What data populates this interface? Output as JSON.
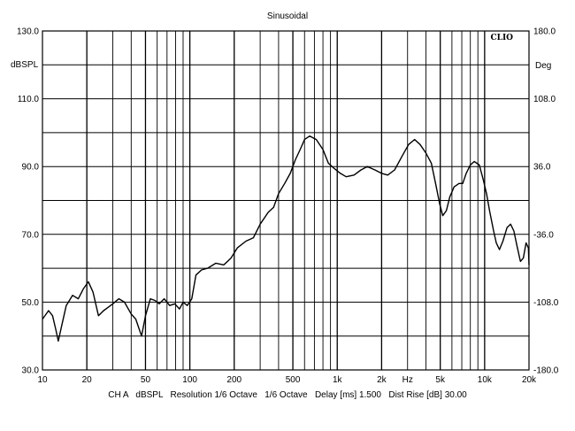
{
  "chart_data": {
    "type": "line",
    "title": "Sinusoidal",
    "brand": "CLIO",
    "left_unit": "dBSPL",
    "right_unit": "Deg",
    "x_scale": "log",
    "xlim": [
      10,
      20000
    ],
    "ylim": [
      30,
      130
    ],
    "y2lim": [
      -180,
      180
    ],
    "grid": true,
    "x_ticks": [
      {
        "v": 10,
        "label": "10"
      },
      {
        "v": 20,
        "label": "20"
      },
      {
        "v": 50,
        "label": "50"
      },
      {
        "v": 100,
        "label": "100"
      },
      {
        "v": 200,
        "label": "200"
      },
      {
        "v": 500,
        "label": "500"
      },
      {
        "v": 1000,
        "label": "1k"
      },
      {
        "v": 2000,
        "label": "2k"
      },
      {
        "v": 3000,
        "label": "Hz"
      },
      {
        "v": 5000,
        "label": "5k"
      },
      {
        "v": 10000,
        "label": "10k"
      },
      {
        "v": 20000,
        "label": "20k"
      }
    ],
    "y_ticks": [
      {
        "v": 130,
        "label": "130.0"
      },
      {
        "v": 110,
        "label": "110.0"
      },
      {
        "v": 90,
        "label": "90.0"
      },
      {
        "v": 70,
        "label": "70.0"
      },
      {
        "v": 50,
        "label": "50.0"
      },
      {
        "v": 30,
        "label": "30.0"
      }
    ],
    "y2_ticks": [
      {
        "v": 180,
        "label": "180.0"
      },
      {
        "v": 108,
        "label": "108.0"
      },
      {
        "v": 36,
        "label": "36.0"
      },
      {
        "v": -36,
        "label": "-36.0"
      },
      {
        "v": -108,
        "label": "-108.0"
      },
      {
        "v": -180,
        "label": "-180.0"
      }
    ],
    "series": [
      {
        "color": "#000000",
        "points": [
          [
            10,
            45
          ],
          [
            11,
            47.5
          ],
          [
            11.7,
            46
          ],
          [
            12.3,
            42
          ],
          [
            12.8,
            38.5
          ],
          [
            13.5,
            43
          ],
          [
            14.5,
            49
          ],
          [
            16,
            52
          ],
          [
            17.5,
            51
          ],
          [
            19,
            54
          ],
          [
            20.5,
            56
          ],
          [
            22,
            53
          ],
          [
            24,
            46
          ],
          [
            26,
            47.5
          ],
          [
            28,
            48.5
          ],
          [
            30,
            49.5
          ],
          [
            33,
            51
          ],
          [
            36,
            50
          ],
          [
            40,
            46.5
          ],
          [
            43,
            45
          ],
          [
            47,
            40
          ],
          [
            50,
            46
          ],
          [
            54,
            51
          ],
          [
            58,
            50.5
          ],
          [
            62,
            49.5
          ],
          [
            67,
            51
          ],
          [
            73,
            49
          ],
          [
            79,
            49.5
          ],
          [
            85,
            48
          ],
          [
            90,
            50
          ],
          [
            96,
            49
          ],
          [
            103,
            51
          ],
          [
            110,
            58
          ],
          [
            120,
            59.5
          ],
          [
            132,
            60
          ],
          [
            150,
            61.5
          ],
          [
            170,
            61
          ],
          [
            190,
            63
          ],
          [
            210,
            66
          ],
          [
            240,
            68
          ],
          [
            270,
            69
          ],
          [
            300,
            73
          ],
          [
            340,
            76.5
          ],
          [
            370,
            78
          ],
          [
            400,
            82
          ],
          [
            440,
            85
          ],
          [
            480,
            88
          ],
          [
            520,
            92
          ],
          [
            560,
            95
          ],
          [
            600,
            98
          ],
          [
            650,
            99
          ],
          [
            720,
            98
          ],
          [
            800,
            95
          ],
          [
            870,
            91
          ],
          [
            950,
            89.5
          ],
          [
            1050,
            88
          ],
          [
            1150,
            87
          ],
          [
            1300,
            87.5
          ],
          [
            1450,
            89
          ],
          [
            1600,
            90
          ],
          [
            1800,
            89
          ],
          [
            2000,
            88
          ],
          [
            2200,
            87.5
          ],
          [
            2450,
            89
          ],
          [
            2750,
            93
          ],
          [
            3050,
            96.5
          ],
          [
            3350,
            98
          ],
          [
            3650,
            96.5
          ],
          [
            4000,
            94
          ],
          [
            4350,
            91
          ],
          [
            4650,
            85
          ],
          [
            4950,
            79
          ],
          [
            5200,
            75.5
          ],
          [
            5500,
            77
          ],
          [
            5800,
            81
          ],
          [
            6200,
            84
          ],
          [
            6700,
            85
          ],
          [
            7100,
            85
          ],
          [
            7500,
            88
          ],
          [
            8000,
            90.5
          ],
          [
            8500,
            91.5
          ],
          [
            9200,
            90.5
          ],
          [
            9800,
            86
          ],
          [
            10300,
            82
          ],
          [
            10800,
            77
          ],
          [
            11500,
            71
          ],
          [
            12000,
            67.5
          ],
          [
            12600,
            65.5
          ],
          [
            13300,
            68
          ],
          [
            14200,
            72
          ],
          [
            15000,
            73
          ],
          [
            15800,
            71
          ],
          [
            16600,
            66.5
          ],
          [
            17500,
            62
          ],
          [
            18300,
            63
          ],
          [
            19100,
            67.5
          ],
          [
            19800,
            66
          ],
          [
            20000,
            61
          ]
        ]
      }
    ],
    "footer": {
      "channel": "CH A",
      "unit": "dBSPL",
      "resolution": "Resolution 1/6 Octave",
      "smoothing": "1/6 Octave",
      "delay": "Delay [ms] 1.500",
      "dist_rise": "Dist Rise [dB] 30.00"
    }
  }
}
